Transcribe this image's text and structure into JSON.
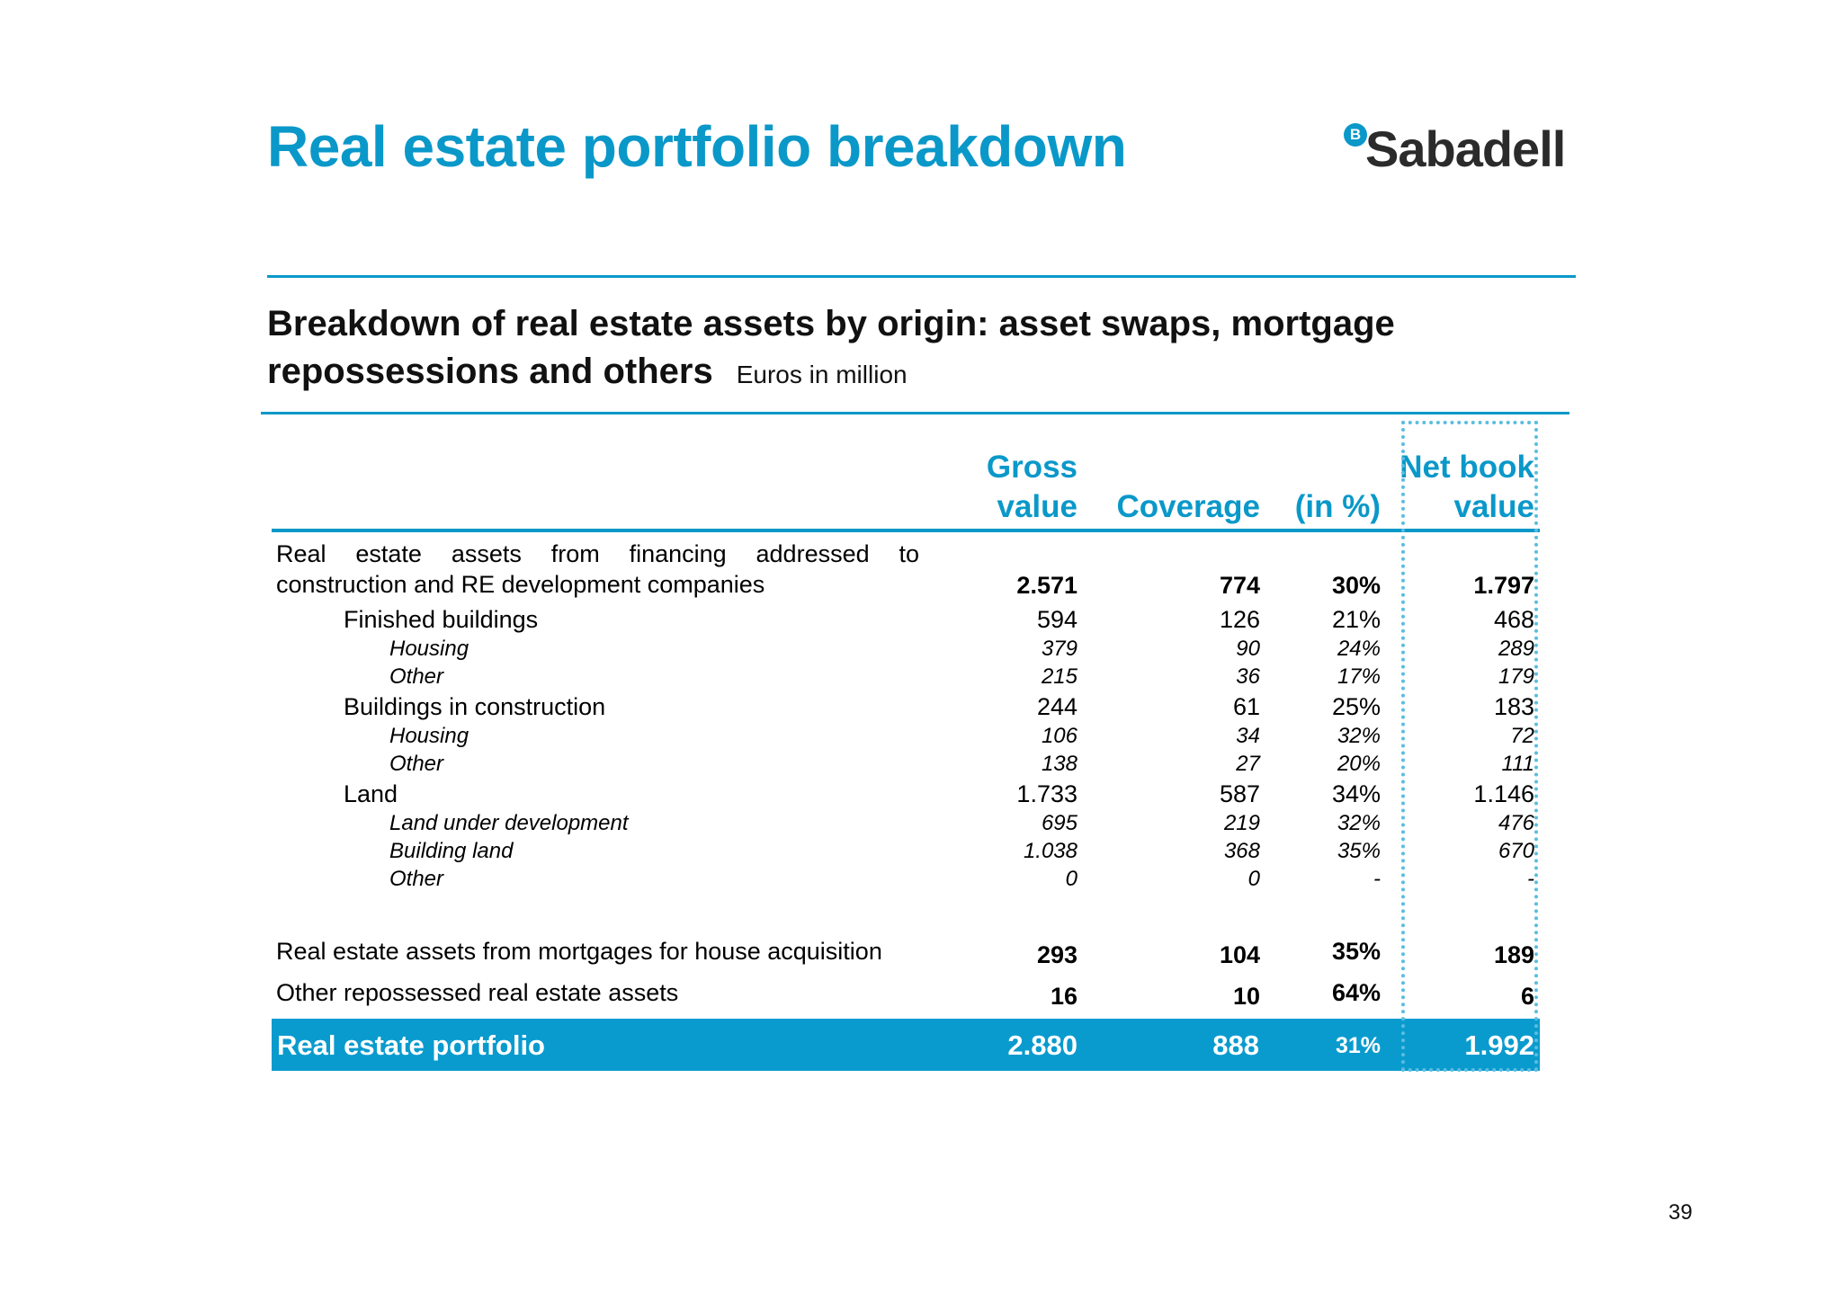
{
  "slide": {
    "title": "Real estate portfolio breakdown",
    "logo_letter": "B",
    "logo_text": "Sabadell",
    "subtitle_line1": "Breakdown of real estate assets by origin: asset swaps, mortgage",
    "subtitle_line2": "repossessions and others",
    "unit": "Euros in million",
    "page_number": "39"
  },
  "table": {
    "headers": {
      "gross_line1": "Gross",
      "gross_line2": "value",
      "coverage": "Coverage",
      "percent": "(in %)",
      "net_line1": "Net book",
      "net_line2": "value"
    },
    "rows": [
      {
        "label": "Real estate assets from financing addressed to construction and RE development companies",
        "gross": "2.571",
        "coverage": "774",
        "percent": "30%",
        "net": "1.797"
      },
      {
        "label": "Finished buildings",
        "gross": "594",
        "coverage": "126",
        "percent": "21%",
        "net": "468"
      },
      {
        "label": "Housing",
        "gross": "379",
        "coverage": "90",
        "percent": "24%",
        "net": "289"
      },
      {
        "label": "Other",
        "gross": "215",
        "coverage": "36",
        "percent": "17%",
        "net": "179"
      },
      {
        "label": "Buildings in construction",
        "gross": "244",
        "coverage": "61",
        "percent": "25%",
        "net": "183"
      },
      {
        "label": "Housing",
        "gross": "106",
        "coverage": "34",
        "percent": "32%",
        "net": "72"
      },
      {
        "label": "Other",
        "gross": "138",
        "coverage": "27",
        "percent": "20%",
        "net": "111"
      },
      {
        "label": "Land",
        "gross": "1.733",
        "coverage": "587",
        "percent": "34%",
        "net": "1.146"
      },
      {
        "label": "Land under development",
        "gross": "695",
        "coverage": "219",
        "percent": "32%",
        "net": "476"
      },
      {
        "label": "Building land",
        "gross": "1.038",
        "coverage": "368",
        "percent": "35%",
        "net": "670"
      },
      {
        "label": "Other",
        "gross": "0",
        "coverage": "0",
        "percent": "-",
        "net": "-"
      },
      {
        "label": "Real estate assets from mortgages for house acquisition",
        "gross": "293",
        "coverage": "104",
        "percent": "35%",
        "net": "189"
      },
      {
        "label": "Other repossessed real estate assets",
        "gross": "16",
        "coverage": "10",
        "percent": "64%",
        "net": "6"
      }
    ],
    "total": {
      "label": "Real estate portfolio",
      "gross": "2.880",
      "coverage": "888",
      "percent": "31%",
      "net": "1.992"
    }
  }
}
